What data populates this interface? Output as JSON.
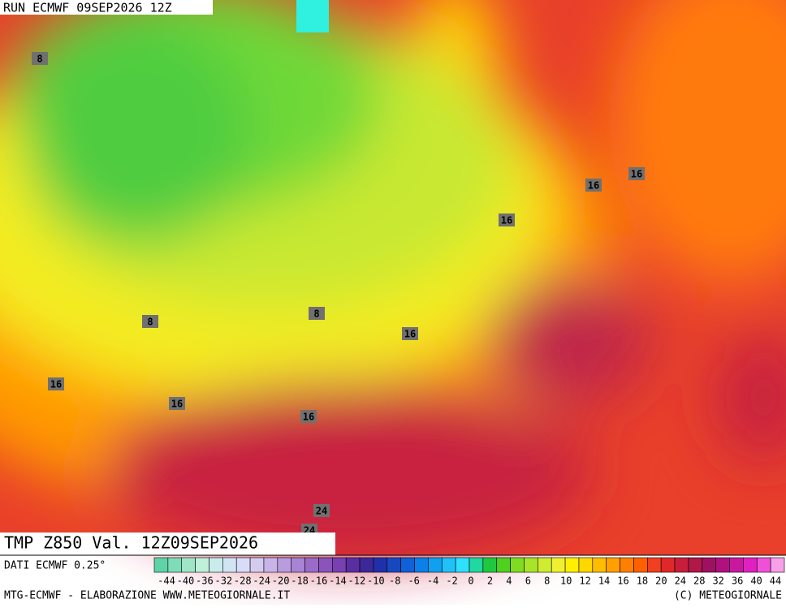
{
  "header": {
    "title": "RUN ECMWF 09SEP2026 12Z"
  },
  "map": {
    "caption": "TMP Z850 Val. 12Z09SEP2026",
    "contour_labels": [
      8,
      16,
      16,
      16,
      8,
      8,
      16,
      16,
      16,
      16,
      24,
      24
    ]
  },
  "footer": {
    "source": "DATI ECMWF 0.25°",
    "credit": "MTG-ECMWF - ELABORAZIONE WWW.METEOGIORNALE.IT",
    "copyright": "(C) METEOGIORNALE"
  },
  "scale": {
    "labels": [
      -44,
      -40,
      -36,
      -32,
      -28,
      -24,
      -20,
      -18,
      -16,
      -14,
      -12,
      -10,
      -8,
      -6,
      -4,
      -2,
      0,
      2,
      4,
      6,
      8,
      10,
      12,
      14,
      16,
      18,
      20,
      24,
      28,
      32,
      36,
      40,
      44
    ],
    "colors": [
      "#5fd3a6",
      "#7fdcb8",
      "#9fe6c9",
      "#bff0da",
      "#c8ecec",
      "#d0e4f4",
      "#d8dcf8",
      "#d4ccf0",
      "#c8b4e8",
      "#b89cde",
      "#a884d4",
      "#9a6cc8",
      "#8a54bc",
      "#7840b0",
      "#5a2ea0",
      "#3c2898",
      "#2030a8",
      "#1848c0",
      "#1060d8",
      "#0a80e8",
      "#10a0f0",
      "#20c0f8",
      "#30e0ff",
      "#20d8a0",
      "#20c840",
      "#50d020",
      "#80dc20",
      "#a8e428",
      "#d0ec30",
      "#f0f030",
      "#fff000",
      "#ffd800",
      "#ffbc00",
      "#ffa000",
      "#ff8000",
      "#ff6000",
      "#f04020",
      "#e02828",
      "#c81e3c",
      "#b01848",
      "#a01060",
      "#b01080",
      "#c818a0",
      "#e020c0",
      "#f050d8",
      "#f8a0e8"
    ]
  }
}
